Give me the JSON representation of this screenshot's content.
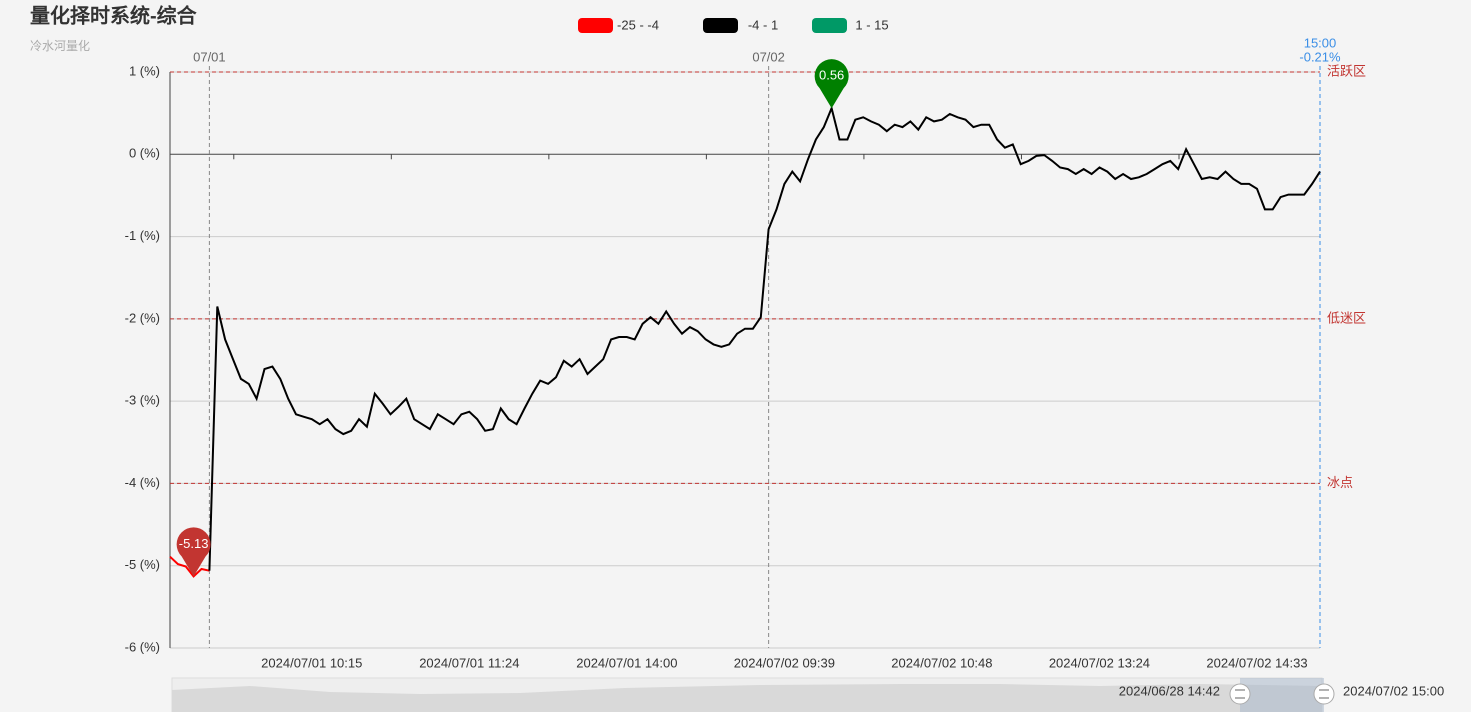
{
  "chart_data": {
    "type": "line",
    "title": "量化择时系统-综合",
    "subtitle": "冷水河量化",
    "pieces": [
      {
        "label": "-25 - -4",
        "min": -25,
        "max": -4,
        "color": "#ff0000"
      },
      {
        "label": "-4 - 1",
        "min": -4,
        "max": 1,
        "color": "#000000"
      },
      {
        "label": "1 - 15",
        "min": 1,
        "max": 15,
        "color": "#009966"
      }
    ],
    "ylim": [
      -6,
      1
    ],
    "yticks": [
      {
        "value": -6,
        "label": "-6 (%)"
      },
      {
        "value": -5,
        "label": "-5 (%)"
      },
      {
        "value": -4,
        "label": "-4 (%)"
      },
      {
        "value": -3,
        "label": "-3 (%)"
      },
      {
        "value": -2,
        "label": "-2 (%)"
      },
      {
        "value": -1,
        "label": "-1 (%)"
      },
      {
        "value": 0,
        "label": "0 (%)"
      },
      {
        "value": 1,
        "label": "1 (%)"
      }
    ],
    "grid": true,
    "x": [
      null,
      null,
      null,
      null,
      null,
      null,
      null,
      null,
      null,
      null,
      null,
      null,
      null,
      null,
      null,
      null,
      null,
      null,
      "2024/07/01 10:15",
      null,
      null,
      null,
      null,
      null,
      null,
      null,
      null,
      null,
      null,
      null,
      null,
      null,
      null,
      null,
      null,
      null,
      null,
      null,
      "2024/07/01 11:24",
      null,
      null,
      null,
      null,
      null,
      null,
      null,
      null,
      null,
      null,
      null,
      null,
      null,
      null,
      null,
      null,
      null,
      null,
      null,
      "2024/07/01 14:00",
      null,
      null,
      null,
      null,
      null,
      null,
      null,
      null,
      null,
      null,
      null,
      null,
      null,
      null,
      null,
      null,
      null,
      null,
      null,
      "2024/07/02 09:39",
      null,
      null,
      null,
      null,
      null,
      null,
      null,
      null,
      null,
      null,
      null,
      null,
      null,
      null,
      null,
      null,
      null,
      null,
      null,
      "2024/07/02 10:48",
      null,
      null,
      null,
      null,
      null,
      null,
      null,
      null,
      null,
      null,
      null,
      null,
      null,
      null,
      null,
      null,
      null,
      null,
      null,
      "2024/07/02 13:24",
      null,
      null,
      null,
      null,
      null,
      null,
      null,
      null,
      null,
      null,
      null,
      null,
      null,
      null,
      null,
      null,
      null,
      null,
      null,
      "2024/07/02 14:33",
      null,
      null,
      null,
      null,
      null,
      null,
      null,
      null
    ],
    "series": [
      {
        "values": [
          -4.89,
          -4.98,
          -5.01,
          -5.13,
          -5.04,
          -5.06,
          -1.85,
          -2.25,
          -2.49,
          -2.73,
          -2.79,
          -2.97,
          -2.61,
          -2.58,
          -2.73,
          -2.97,
          -3.16,
          -3.19,
          -3.22,
          -3.28,
          -3.22,
          -3.34,
          -3.4,
          -3.36,
          -3.22,
          -3.31,
          -2.91,
          -3.03,
          -3.16,
          -3.07,
          -2.97,
          -3.22,
          -3.28,
          -3.34,
          -3.16,
          -3.22,
          -3.28,
          -3.16,
          -3.13,
          -3.22,
          -3.36,
          -3.34,
          -3.09,
          -3.22,
          -3.28,
          -3.09,
          -2.91,
          -2.75,
          -2.79,
          -2.71,
          -2.51,
          -2.58,
          -2.49,
          -2.67,
          -2.58,
          -2.49,
          -2.25,
          -2.22,
          -2.22,
          -2.25,
          -2.06,
          -1.98,
          -2.06,
          -1.91,
          -2.06,
          -2.18,
          -2.1,
          -2.15,
          -2.25,
          -2.31,
          -2.34,
          -2.31,
          -2.18,
          -2.12,
          -2.12,
          -1.98,
          -0.91,
          -0.67,
          -0.36,
          -0.21,
          -0.33,
          -0.06,
          0.18,
          0.33,
          0.56,
          0.18,
          0.18,
          0.42,
          0.45,
          0.4,
          0.36,
          0.28,
          0.36,
          0.33,
          0.4,
          0.3,
          0.45,
          0.4,
          0.42,
          0.49,
          0.45,
          0.42,
          0.33,
          0.36,
          0.36,
          0.18,
          0.08,
          0.12,
          -0.12,
          -0.08,
          -0.02,
          -0.01,
          -0.08,
          -0.16,
          -0.18,
          -0.24,
          -0.18,
          -0.24,
          -0.16,
          -0.21,
          -0.3,
          -0.24,
          -0.3,
          -0.28,
          -0.24,
          -0.18,
          -0.12,
          -0.08,
          -0.18,
          0.06,
          -0.12,
          -0.3,
          -0.28,
          -0.3,
          -0.21,
          -0.3,
          -0.36,
          -0.36,
          -0.42,
          -0.67,
          -0.67,
          -0.52,
          -0.49,
          -0.49,
          -0.49,
          -0.36,
          -0.21
        ]
      }
    ],
    "mark_lines": [
      {
        "value": 1,
        "label": "活跃区"
      },
      {
        "value": -2,
        "label": "低迷区"
      },
      {
        "value": -4,
        "label": "冰点"
      }
    ],
    "day_lines": [
      {
        "label": "07/01",
        "index": 5
      },
      {
        "label": "07/02",
        "index": 76
      }
    ],
    "mark_points": [
      {
        "value": -5.13,
        "index": 3,
        "color": "#c23531"
      },
      {
        "value": 0.56,
        "index": 84,
        "color": "#008000"
      }
    ],
    "end_label": {
      "time": "15:00",
      "value_label": "-0.21%"
    },
    "zoom": {
      "start_label": "2024/06/28 14:42",
      "end_label": "2024/07/02 15:00"
    }
  }
}
